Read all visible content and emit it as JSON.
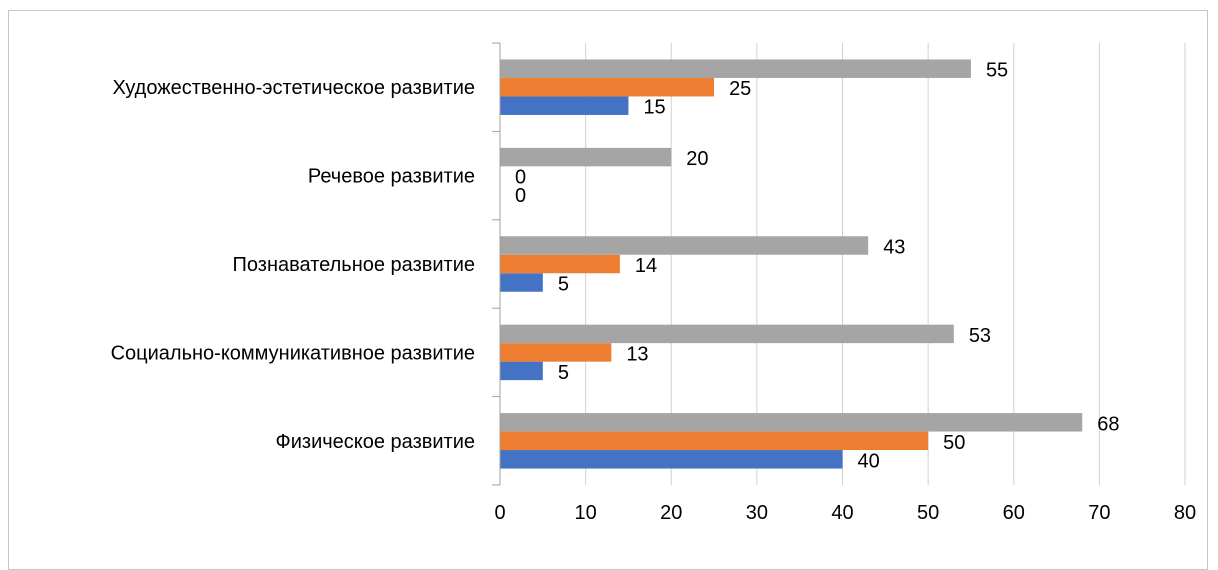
{
  "chart_data": {
    "type": "bar",
    "orientation": "horizontal",
    "categories": [
      "Физическое развитие",
      "Социально-коммуникативное развитие",
      "Познавательное развитие",
      "Речевое развитие",
      "Художественно-эстетическое развитие"
    ],
    "series": [
      {
        "values": [
          40,
          5,
          5,
          0,
          15
        ],
        "color": "#4472C4"
      },
      {
        "values": [
          50,
          13,
          14,
          0,
          25
        ],
        "color": "#ED7D31"
      },
      {
        "values": [
          68,
          53,
          43,
          20,
          55
        ],
        "color": "#A5A5A5"
      }
    ],
    "xlim": [
      0,
      80
    ],
    "xticks": [
      0,
      10,
      20,
      30,
      40,
      50,
      60,
      70,
      80
    ],
    "grid": true,
    "legend": "none"
  }
}
